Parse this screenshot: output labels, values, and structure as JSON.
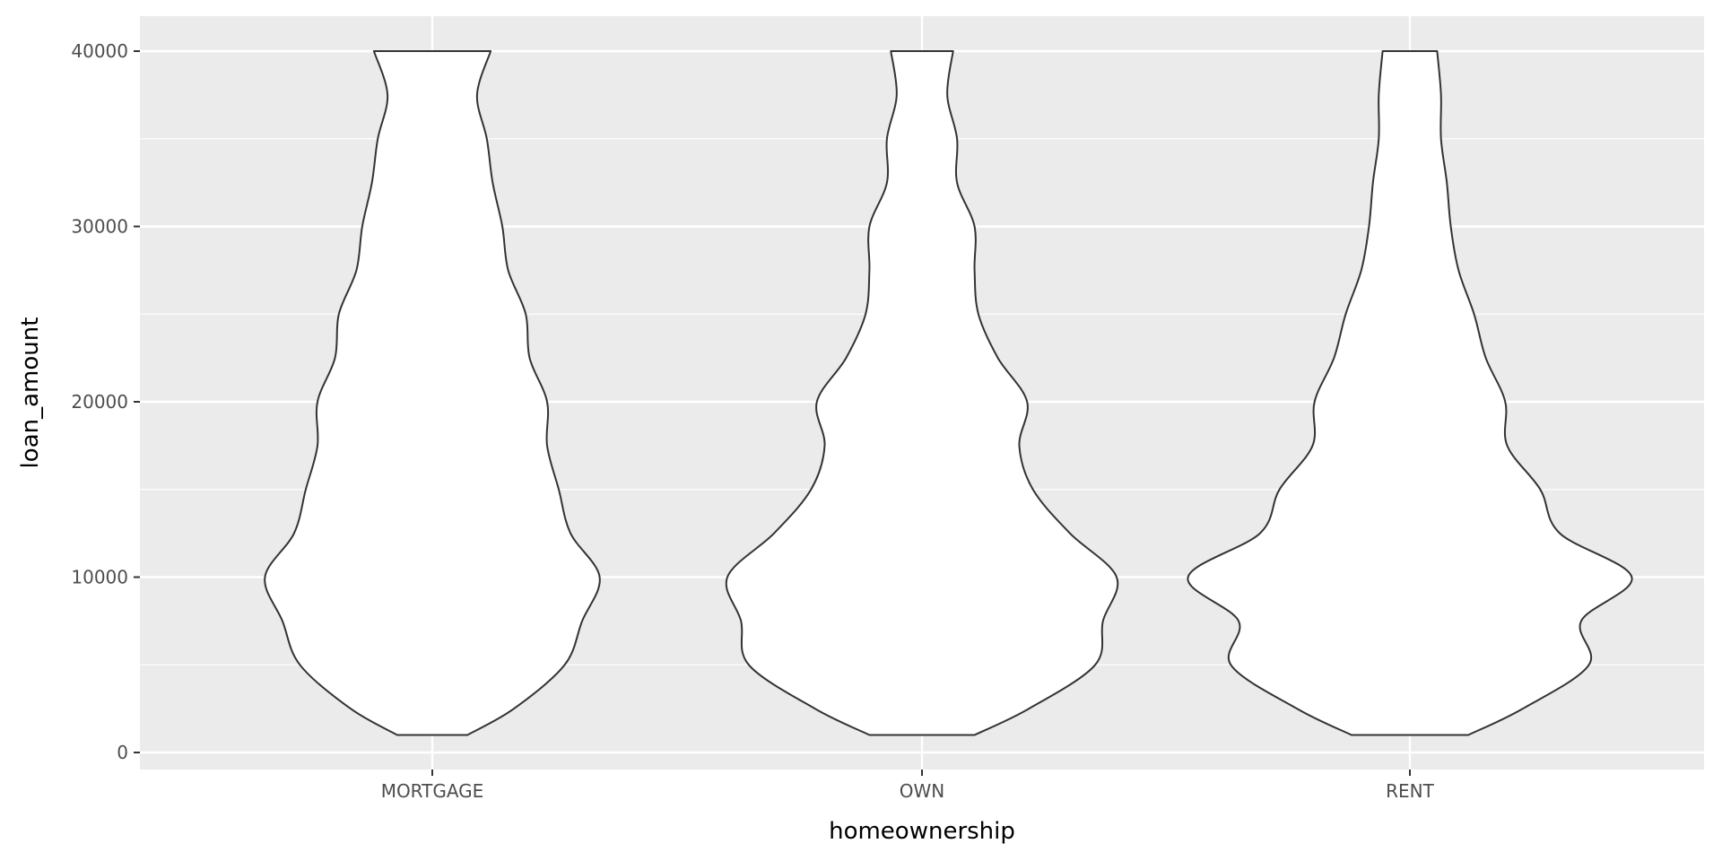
{
  "chart_data": {
    "type": "violin",
    "xlabel": "homeownership",
    "ylabel": "loan_amount",
    "categories": [
      "MORTGAGE",
      "OWN",
      "RENT"
    ],
    "ylim": [
      -1000,
      42000
    ],
    "yticks": [
      0,
      10000,
      20000,
      30000,
      40000
    ],
    "ytick_labels": [
      "0",
      "10000",
      "20000",
      "30000",
      "40000"
    ],
    "grid": true,
    "y_range": [
      1000,
      40000
    ],
    "density_profiles": [
      {
        "category": "MORTGAGE",
        "y": [
          1000,
          2500,
          5000,
          7500,
          10000,
          12500,
          15000,
          17500,
          20000,
          22500,
          25000,
          27500,
          30000,
          32500,
          35000,
          37500,
          40000
        ],
        "relative_width": [
          0.18,
          0.42,
          0.68,
          0.77,
          0.86,
          0.71,
          0.65,
          0.59,
          0.59,
          0.5,
          0.48,
          0.39,
          0.36,
          0.31,
          0.28,
          0.23,
          0.3
        ]
      },
      {
        "category": "OWN",
        "y": [
          1000,
          2500,
          5000,
          7500,
          10000,
          12500,
          15000,
          17500,
          20000,
          22500,
          25000,
          27500,
          30000,
          32500,
          35000,
          37500,
          40000
        ],
        "relative_width": [
          0.27,
          0.55,
          0.89,
          0.93,
          1.0,
          0.76,
          0.57,
          0.5,
          0.54,
          0.39,
          0.29,
          0.27,
          0.27,
          0.18,
          0.18,
          0.13,
          0.16
        ]
      },
      {
        "category": "RENT",
        "y": [
          1000,
          2500,
          5000,
          7500,
          10000,
          12500,
          15000,
          17500,
          20000,
          22500,
          25000,
          27500,
          30000,
          32500,
          35000,
          37500,
          40000
        ],
        "relative_width": [
          0.3,
          0.58,
          0.92,
          0.88,
          1.14,
          0.77,
          0.67,
          0.5,
          0.49,
          0.39,
          0.33,
          0.25,
          0.21,
          0.19,
          0.16,
          0.16,
          0.14
        ]
      }
    ],
    "colors": {
      "panel_background": "#ebebeb",
      "grid_major": "#ffffff",
      "violin_fill": "#ffffff",
      "violin_stroke": "#333333",
      "tick_label": "#4d4d4d",
      "axis_title": "#000000"
    }
  }
}
